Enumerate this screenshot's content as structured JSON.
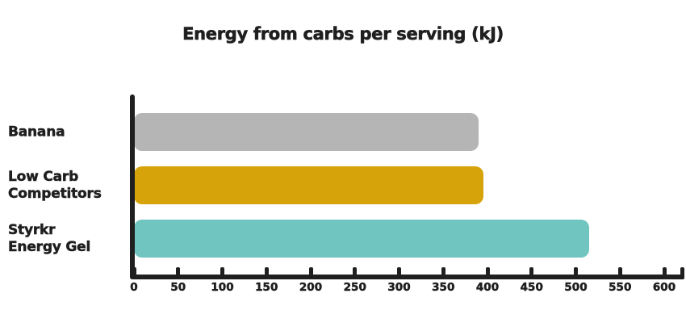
{
  "chart": {
    "title": "Energy from carbs per serving (kJ)"
  },
  "chart_data": {
    "type": "bar",
    "orientation": "horizontal",
    "title": "Energy from carbs per serving (kJ)",
    "categories": [
      "Banana",
      "Low Carb Competitors",
      "Styrkr Energy Gel"
    ],
    "category_label_lines": [
      [
        "Banana"
      ],
      [
        "Low Carb",
        "Competitors"
      ],
      [
        "Styrkr",
        "Energy Gel"
      ]
    ],
    "values": [
      390,
      395,
      515
    ],
    "bar_colors": [
      "#b5b5b5",
      "#d6a40a",
      "#70c5c1"
    ],
    "xlabel": "",
    "ylabel": "",
    "xlim": [
      0,
      600
    ],
    "xticks": [
      0,
      50,
      100,
      150,
      200,
      250,
      300,
      350,
      400,
      450,
      500,
      550,
      600
    ],
    "grid": false,
    "legend": false,
    "axis_color": "#1f1f1f",
    "text_color": "#1f1f1f",
    "background": "#ffffff"
  }
}
